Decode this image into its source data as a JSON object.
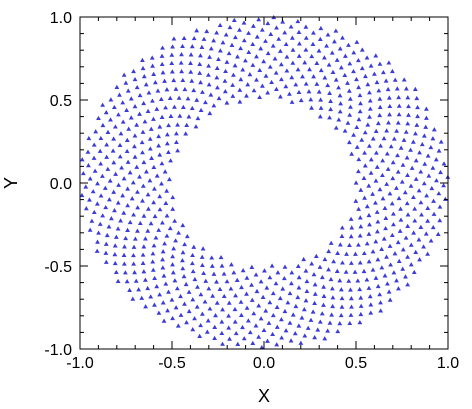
{
  "chart_data": {
    "type": "scatter",
    "title": "",
    "xlabel": "X",
    "ylabel": "Y",
    "xlim": [
      -1.0,
      1.0
    ],
    "ylim": [
      -1.0,
      1.0
    ],
    "x_ticks": [
      {
        "value": -1.0,
        "label": "-1.0"
      },
      {
        "value": -0.5,
        "label": "-0.5"
      },
      {
        "value": 0.0,
        "label": "0.0"
      },
      {
        "value": 0.5,
        "label": "0.5"
      },
      {
        "value": 1.0,
        "label": "1.0"
      }
    ],
    "y_ticks": [
      {
        "value": -1.0,
        "label": "-1.0"
      },
      {
        "value": -0.5,
        "label": "-0.5"
      },
      {
        "value": 0.0,
        "label": "0.0"
      },
      {
        "value": 0.5,
        "label": "0.5"
      },
      {
        "value": 1.0,
        "label": "1.0"
      }
    ],
    "minor_ticks_per_major": 5,
    "grid": false,
    "marker_color": "#3b3bd9",
    "marker_shape": "triangle",
    "point_distribution": {
      "pattern": "phyllotaxis",
      "inner_radius": 0.5,
      "outer_radius": 1.0,
      "point_count": 900
    }
  }
}
